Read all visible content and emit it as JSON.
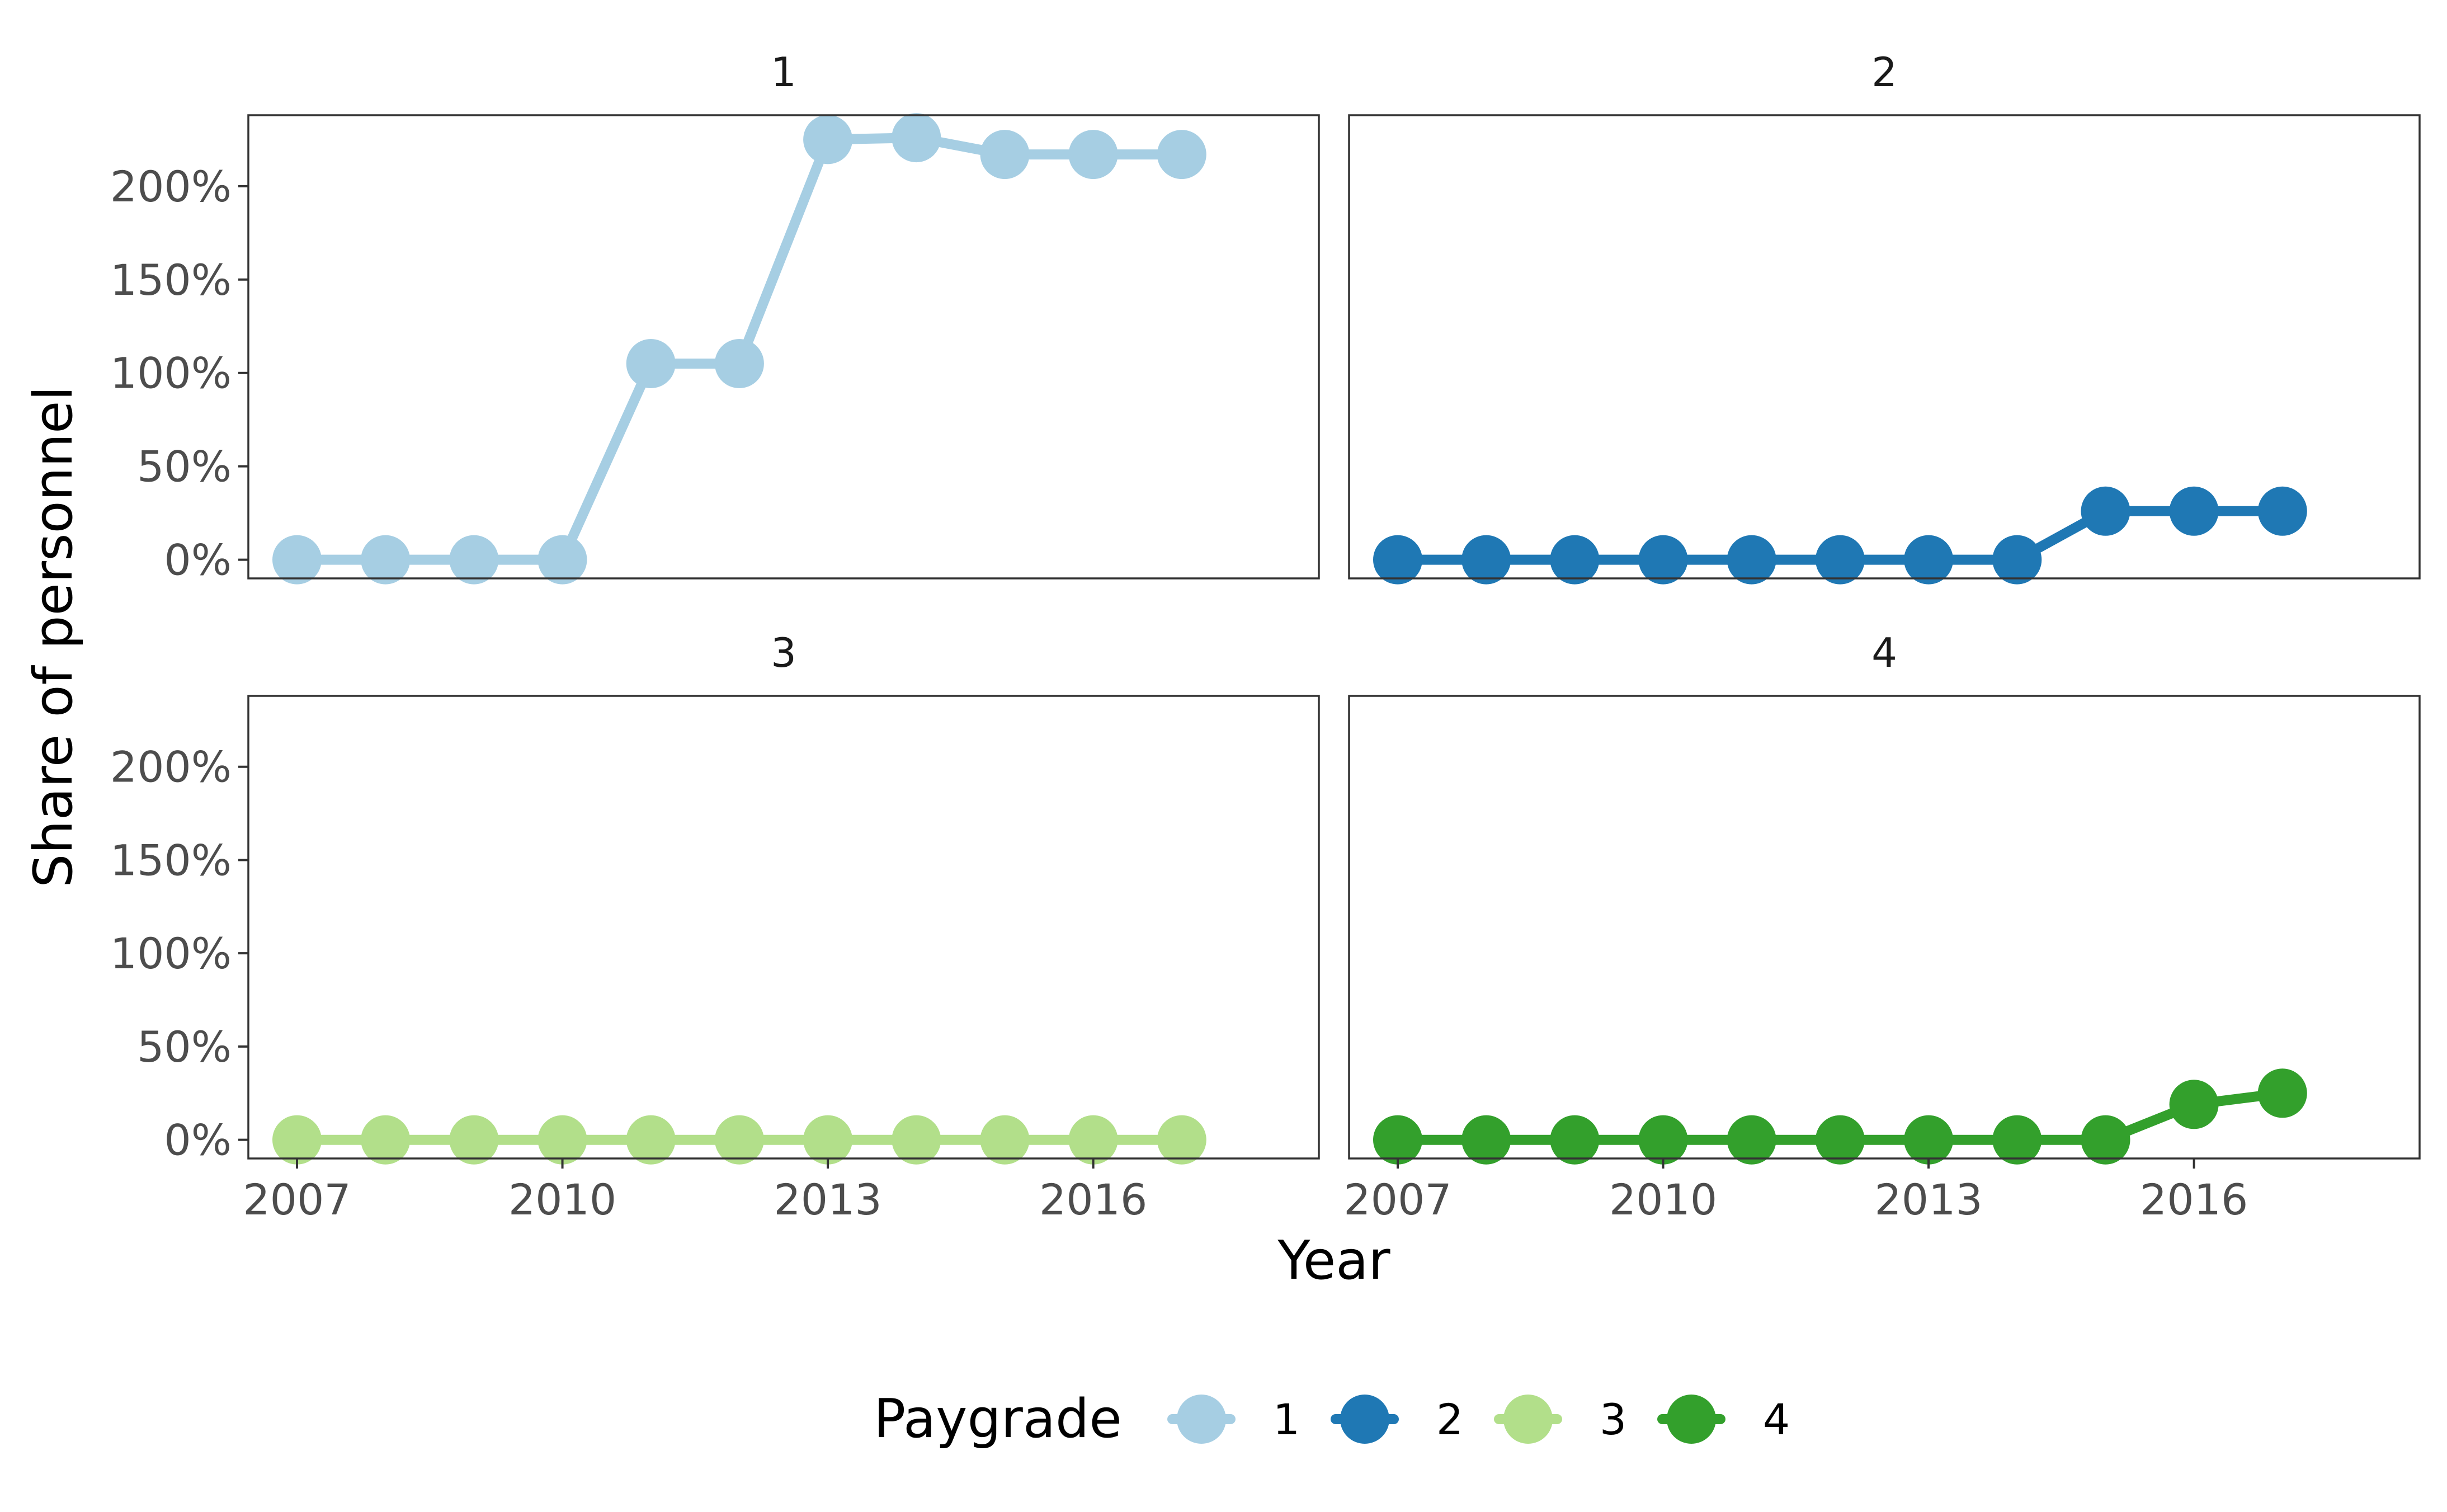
{
  "chart_data": {
    "type": "line",
    "facet_by": "Paygrade",
    "panels": [
      {
        "strip_label": "1",
        "series": [
          {
            "name": "1",
            "color": "#a6cee3",
            "x": [
              2007,
              2008,
              2009,
              2010,
              2011,
              2012,
              2013,
              2014,
              2015,
              2016,
              2017
            ],
            "y": [
              0,
              0,
              0,
              0,
              1.05,
              1.05,
              2.25,
              2.26,
              2.17,
              2.17,
              2.17
            ]
          }
        ]
      },
      {
        "strip_label": "2",
        "series": [
          {
            "name": "2",
            "color": "#1f78b4",
            "x": [
              2007,
              2008,
              2009,
              2010,
              2011,
              2012,
              2013,
              2014,
              2015,
              2016,
              2017
            ],
            "y": [
              0,
              0,
              0,
              0,
              0,
              0,
              0,
              0,
              0.26,
              0.26,
              0.26
            ]
          }
        ]
      },
      {
        "strip_label": "3",
        "series": [
          {
            "name": "3",
            "color": "#b2df8a",
            "x": [
              2007,
              2008,
              2009,
              2010,
              2011,
              2012,
              2013,
              2014,
              2015,
              2016,
              2017
            ],
            "y": [
              0,
              0,
              0,
              0,
              0,
              0,
              0,
              0,
              0,
              0,
              0
            ]
          }
        ]
      },
      {
        "strip_label": "4",
        "series": [
          {
            "name": "4",
            "color": "#33a02c",
            "x": [
              2007,
              2008,
              2009,
              2010,
              2011,
              2012,
              2013,
              2014,
              2015,
              2016,
              2017
            ],
            "y": [
              0,
              0,
              0,
              0,
              0,
              0,
              0,
              0,
              0,
              0.19,
              0.25
            ]
          }
        ]
      }
    ],
    "xlabel": "Year",
    "ylabel": "Share of personnel",
    "xlim": [
      2006.45,
      2018.55
    ],
    "ylim": [
      -0.1,
      2.38
    ],
    "x_ticks": [
      2007,
      2010,
      2013,
      2016
    ],
    "y_ticks": [
      0,
      0.5,
      1.0,
      1.5,
      2.0
    ],
    "y_tick_labels": [
      "0%",
      "50%",
      "100%",
      "150%",
      "200%"
    ],
    "grid": false,
    "legend": {
      "title": "Paygrade",
      "position": "bottom",
      "entries": [
        {
          "label": "1",
          "color": "#a6cee3"
        },
        {
          "label": "2",
          "color": "#1f78b4"
        },
        {
          "label": "3",
          "color": "#b2df8a"
        },
        {
          "label": "4",
          "color": "#33a02c"
        }
      ]
    }
  }
}
